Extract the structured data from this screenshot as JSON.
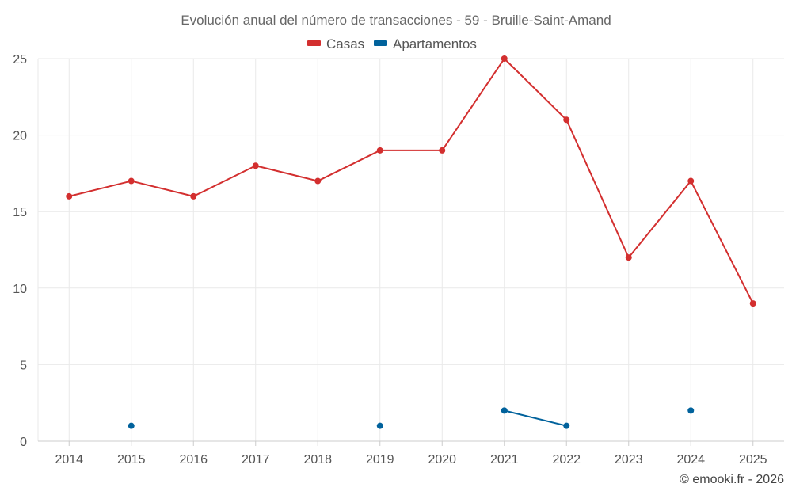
{
  "chart_data": {
    "type": "line",
    "title": "Evolución anual del número de transacciones - 59 - Bruille-Saint-Amand",
    "xlabel": "",
    "ylabel": "",
    "categories": [
      "2014",
      "2015",
      "2016",
      "2017",
      "2018",
      "2019",
      "2020",
      "2021",
      "2022",
      "2023",
      "2024",
      "2025"
    ],
    "ylim": [
      0,
      25
    ],
    "yticks": [
      0,
      5,
      10,
      15,
      20,
      25
    ],
    "grid": true,
    "legend_position": "top-center",
    "series": [
      {
        "name": "Casas",
        "color": "#d32f2f",
        "values": [
          16,
          17,
          16,
          18,
          17,
          19,
          19,
          25,
          21,
          12,
          17,
          9
        ]
      },
      {
        "name": "Apartamentos",
        "color": "#01629c",
        "values": [
          null,
          1,
          null,
          null,
          null,
          1,
          null,
          2,
          1,
          null,
          2,
          null
        ]
      }
    ]
  },
  "credit": "© emooki.fr - 2026"
}
